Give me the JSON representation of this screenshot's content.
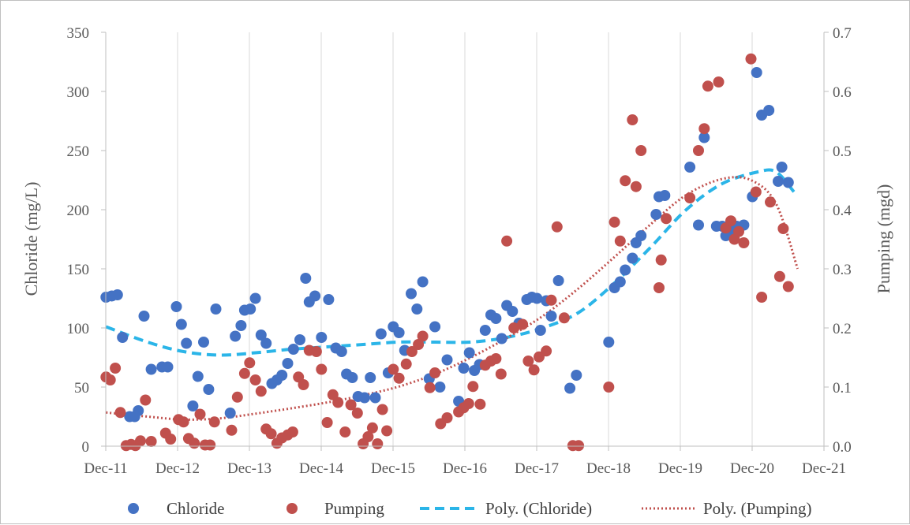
{
  "chart_data": {
    "type": "scatter",
    "x_axis": {
      "labels": [
        "Dec-11",
        "Dec-12",
        "Dec-13",
        "Dec-14",
        "Dec-15",
        "Dec-16",
        "Dec-17",
        "Dec-18",
        "Dec-19",
        "Dec-20",
        "Dec-21"
      ],
      "range": [
        2011.917,
        2021.917
      ]
    },
    "y_left": {
      "title": "Chloride (mg/L)",
      "range": [
        0,
        350
      ],
      "ticks": [
        0,
        50,
        100,
        150,
        200,
        250,
        300,
        350
      ]
    },
    "y_right": {
      "title": "Pumping (mgd)",
      "range": [
        0,
        0.7
      ],
      "ticks": [
        "0.0",
        "0.1",
        "0.2",
        "0.3",
        "0.4",
        "0.5",
        "0.6",
        "0.7"
      ]
    },
    "grid": "vertical",
    "legend_position": "bottom",
    "colors": {
      "chloride": "#4472c4",
      "pumping": "#c0504d",
      "chloride_trend": "#2bb5e8",
      "pumping_trend": "#c0504d"
    },
    "legend": [
      "Chloride",
      "Pumping",
      "Poly. (Chloride)",
      "Poly. (Pumping)"
    ],
    "series": [
      {
        "name": "Chloride",
        "axis": "left",
        "kind": "points",
        "points": [
          [
            2011.92,
            126
          ],
          [
            2012.0,
            127
          ],
          [
            2012.08,
            128
          ],
          [
            2012.15,
            92
          ],
          [
            2012.25,
            25
          ],
          [
            2012.32,
            25
          ],
          [
            2012.37,
            30
          ],
          [
            2012.45,
            110
          ],
          [
            2012.55,
            65
          ],
          [
            2012.7,
            67
          ],
          [
            2012.78,
            67
          ],
          [
            2012.9,
            118
          ],
          [
            2012.97,
            103
          ],
          [
            2013.04,
            87
          ],
          [
            2013.13,
            34
          ],
          [
            2013.2,
            59
          ],
          [
            2013.28,
            88
          ],
          [
            2013.35,
            48
          ],
          [
            2013.45,
            116
          ],
          [
            2013.65,
            28
          ],
          [
            2013.72,
            93
          ],
          [
            2013.8,
            102
          ],
          [
            2013.85,
            115
          ],
          [
            2013.93,
            116
          ],
          [
            2014.0,
            125
          ],
          [
            2014.08,
            94
          ],
          [
            2014.15,
            87
          ],
          [
            2014.23,
            53
          ],
          [
            2014.3,
            56
          ],
          [
            2014.37,
            60
          ],
          [
            2014.45,
            70
          ],
          [
            2014.53,
            82
          ],
          [
            2014.62,
            90
          ],
          [
            2014.7,
            142
          ],
          [
            2014.75,
            122
          ],
          [
            2014.83,
            127
          ],
          [
            2014.92,
            92
          ],
          [
            2015.02,
            124
          ],
          [
            2015.12,
            83
          ],
          [
            2015.2,
            80
          ],
          [
            2015.27,
            61
          ],
          [
            2015.35,
            58
          ],
          [
            2015.43,
            42
          ],
          [
            2015.52,
            41
          ],
          [
            2015.6,
            58
          ],
          [
            2015.67,
            41
          ],
          [
            2015.75,
            95
          ],
          [
            2015.85,
            62
          ],
          [
            2015.92,
            101
          ],
          [
            2016.0,
            96
          ],
          [
            2016.08,
            81
          ],
          [
            2016.17,
            129
          ],
          [
            2016.25,
            116
          ],
          [
            2016.33,
            139
          ],
          [
            2016.42,
            57
          ],
          [
            2016.5,
            101
          ],
          [
            2016.57,
            50
          ],
          [
            2016.67,
            73
          ],
          [
            2016.83,
            38
          ],
          [
            2016.9,
            66
          ],
          [
            2016.98,
            79
          ],
          [
            2017.05,
            64
          ],
          [
            2017.12,
            69
          ],
          [
            2017.2,
            98
          ],
          [
            2017.28,
            111
          ],
          [
            2017.35,
            108
          ],
          [
            2017.43,
            91
          ],
          [
            2017.5,
            119
          ],
          [
            2017.58,
            114
          ],
          [
            2017.67,
            104
          ],
          [
            2017.78,
            124
          ],
          [
            2017.85,
            126
          ],
          [
            2017.92,
            125
          ],
          [
            2017.97,
            98
          ],
          [
            2018.05,
            123
          ],
          [
            2018.12,
            110
          ],
          [
            2018.22,
            140
          ],
          [
            2018.38,
            49
          ],
          [
            2018.47,
            60
          ],
          [
            2018.92,
            88
          ],
          [
            2019.0,
            134
          ],
          [
            2019.08,
            139
          ],
          [
            2019.15,
            149
          ],
          [
            2019.25,
            159
          ],
          [
            2019.3,
            172
          ],
          [
            2019.37,
            178
          ],
          [
            2019.58,
            196
          ],
          [
            2019.62,
            211
          ],
          [
            2019.7,
            212
          ],
          [
            2020.05,
            236
          ],
          [
            2020.17,
            187
          ],
          [
            2020.25,
            261
          ],
          [
            2020.42,
            186
          ],
          [
            2020.5,
            186
          ],
          [
            2020.55,
            178
          ],
          [
            2020.63,
            182
          ],
          [
            2020.7,
            186
          ],
          [
            2020.8,
            187
          ],
          [
            2020.92,
            211
          ],
          [
            2020.98,
            316
          ],
          [
            2021.05,
            280
          ],
          [
            2021.15,
            284
          ],
          [
            2021.28,
            224
          ],
          [
            2021.33,
            236
          ],
          [
            2021.42,
            223
          ]
        ]
      },
      {
        "name": "Pumping",
        "axis": "right",
        "kind": "points",
        "points": [
          [
            2011.92,
            0.117
          ],
          [
            2011.98,
            0.112
          ],
          [
            2012.05,
            0.132
          ],
          [
            2012.12,
            0.057
          ],
          [
            2012.2,
            0.001
          ],
          [
            2012.27,
            0.003
          ],
          [
            2012.33,
            0.001
          ],
          [
            2012.4,
            0.009
          ],
          [
            2012.47,
            0.078
          ],
          [
            2012.55,
            0.008
          ],
          [
            2012.75,
            0.022
          ],
          [
            2012.82,
            0.012
          ],
          [
            2012.93,
            0.045
          ],
          [
            2013.0,
            0.041
          ],
          [
            2013.07,
            0.013
          ],
          [
            2013.15,
            0.005
          ],
          [
            2013.23,
            0.054
          ],
          [
            2013.3,
            0.002
          ],
          [
            2013.37,
            0.002
          ],
          [
            2013.43,
            0.041
          ],
          [
            2013.67,
            0.027
          ],
          [
            2013.75,
            0.083
          ],
          [
            2013.85,
            0.123
          ],
          [
            2013.92,
            0.141
          ],
          [
            2014.0,
            0.112
          ],
          [
            2014.08,
            0.093
          ],
          [
            2014.15,
            0.029
          ],
          [
            2014.22,
            0.021
          ],
          [
            2014.3,
            0.005
          ],
          [
            2014.37,
            0.014
          ],
          [
            2014.45,
            0.019
          ],
          [
            2014.52,
            0.024
          ],
          [
            2014.6,
            0.117
          ],
          [
            2014.67,
            0.104
          ],
          [
            2014.75,
            0.162
          ],
          [
            2014.85,
            0.16
          ],
          [
            2014.92,
            0.13
          ],
          [
            2015.0,
            0.04
          ],
          [
            2015.08,
            0.087
          ],
          [
            2015.15,
            0.074
          ],
          [
            2015.25,
            0.024
          ],
          [
            2015.33,
            0.07
          ],
          [
            2015.42,
            0.056
          ],
          [
            2015.5,
            0.004
          ],
          [
            2015.57,
            0.016
          ],
          [
            2015.63,
            0.031
          ],
          [
            2015.7,
            0.004
          ],
          [
            2015.77,
            0.062
          ],
          [
            2015.83,
            0.026
          ],
          [
            2015.92,
            0.13
          ],
          [
            2016.0,
            0.115
          ],
          [
            2016.1,
            0.139
          ],
          [
            2016.18,
            0.16
          ],
          [
            2016.27,
            0.172
          ],
          [
            2016.33,
            0.186
          ],
          [
            2016.43,
            0.099
          ],
          [
            2016.5,
            0.124
          ],
          [
            2016.58,
            0.038
          ],
          [
            2016.67,
            0.048
          ],
          [
            2016.83,
            0.058
          ],
          [
            2016.9,
            0.065
          ],
          [
            2016.97,
            0.072
          ],
          [
            2017.03,
            0.101
          ],
          [
            2017.13,
            0.071
          ],
          [
            2017.2,
            0.137
          ],
          [
            2017.28,
            0.144
          ],
          [
            2017.35,
            0.148
          ],
          [
            2017.42,
            0.122
          ],
          [
            2017.5,
            0.347
          ],
          [
            2017.6,
            0.2
          ],
          [
            2017.72,
            0.206
          ],
          [
            2017.8,
            0.144
          ],
          [
            2017.88,
            0.129
          ],
          [
            2017.95,
            0.151
          ],
          [
            2018.05,
            0.161
          ],
          [
            2018.12,
            0.247
          ],
          [
            2018.2,
            0.371
          ],
          [
            2018.3,
            0.217
          ],
          [
            2018.42,
            0.001
          ],
          [
            2018.5,
            0.001
          ],
          [
            2018.92,
            0.1
          ],
          [
            2019.0,
            0.379
          ],
          [
            2019.08,
            0.347
          ],
          [
            2019.15,
            0.449
          ],
          [
            2019.25,
            0.552
          ],
          [
            2019.3,
            0.439
          ],
          [
            2019.37,
            0.5
          ],
          [
            2019.62,
            0.268
          ],
          [
            2019.65,
            0.315
          ],
          [
            2019.72,
            0.385
          ],
          [
            2020.05,
            0.42
          ],
          [
            2020.17,
            0.5
          ],
          [
            2020.25,
            0.537
          ],
          [
            2020.3,
            0.609
          ],
          [
            2020.45,
            0.616
          ],
          [
            2020.55,
            0.369
          ],
          [
            2020.62,
            0.381
          ],
          [
            2020.67,
            0.35
          ],
          [
            2020.73,
            0.363
          ],
          [
            2020.8,
            0.344
          ],
          [
            2020.9,
            0.655
          ],
          [
            2020.97,
            0.43
          ],
          [
            2021.05,
            0.252
          ],
          [
            2021.17,
            0.413
          ],
          [
            2021.3,
            0.287
          ],
          [
            2021.35,
            0.368
          ],
          [
            2021.42,
            0.27
          ]
        ]
      },
      {
        "name": "Poly. (Chloride)",
        "axis": "left",
        "kind": "trend",
        "style": "dashed",
        "points": [
          [
            2011.92,
            101
          ],
          [
            2012.5,
            88
          ],
          [
            2013.0,
            80
          ],
          [
            2013.5,
            77
          ],
          [
            2014.0,
            79
          ],
          [
            2014.5,
            82
          ],
          [
            2015.0,
            84
          ],
          [
            2015.5,
            86
          ],
          [
            2016.0,
            88
          ],
          [
            2016.5,
            88
          ],
          [
            2017.0,
            88
          ],
          [
            2017.5,
            92
          ],
          [
            2018.0,
            100
          ],
          [
            2018.5,
            113
          ],
          [
            2019.0,
            138
          ],
          [
            2019.5,
            168
          ],
          [
            2020.0,
            200
          ],
          [
            2020.5,
            222
          ],
          [
            2021.0,
            232
          ],
          [
            2021.25,
            232
          ],
          [
            2021.5,
            215
          ]
        ]
      },
      {
        "name": "Poly. (Pumping)",
        "axis": "right",
        "kind": "trend",
        "style": "dotted",
        "points": [
          [
            2011.92,
            0.057
          ],
          [
            2012.5,
            0.05
          ],
          [
            2013.0,
            0.045
          ],
          [
            2013.5,
            0.047
          ],
          [
            2014.0,
            0.055
          ],
          [
            2014.5,
            0.064
          ],
          [
            2015.0,
            0.074
          ],
          [
            2015.5,
            0.086
          ],
          [
            2016.0,
            0.101
          ],
          [
            2016.5,
            0.122
          ],
          [
            2017.0,
            0.15
          ],
          [
            2017.5,
            0.183
          ],
          [
            2018.0,
            0.22
          ],
          [
            2018.5,
            0.267
          ],
          [
            2019.0,
            0.32
          ],
          [
            2019.5,
            0.375
          ],
          [
            2020.0,
            0.425
          ],
          [
            2020.5,
            0.452
          ],
          [
            2020.9,
            0.45
          ],
          [
            2021.25,
            0.41
          ],
          [
            2021.55,
            0.3
          ]
        ]
      }
    ]
  }
}
